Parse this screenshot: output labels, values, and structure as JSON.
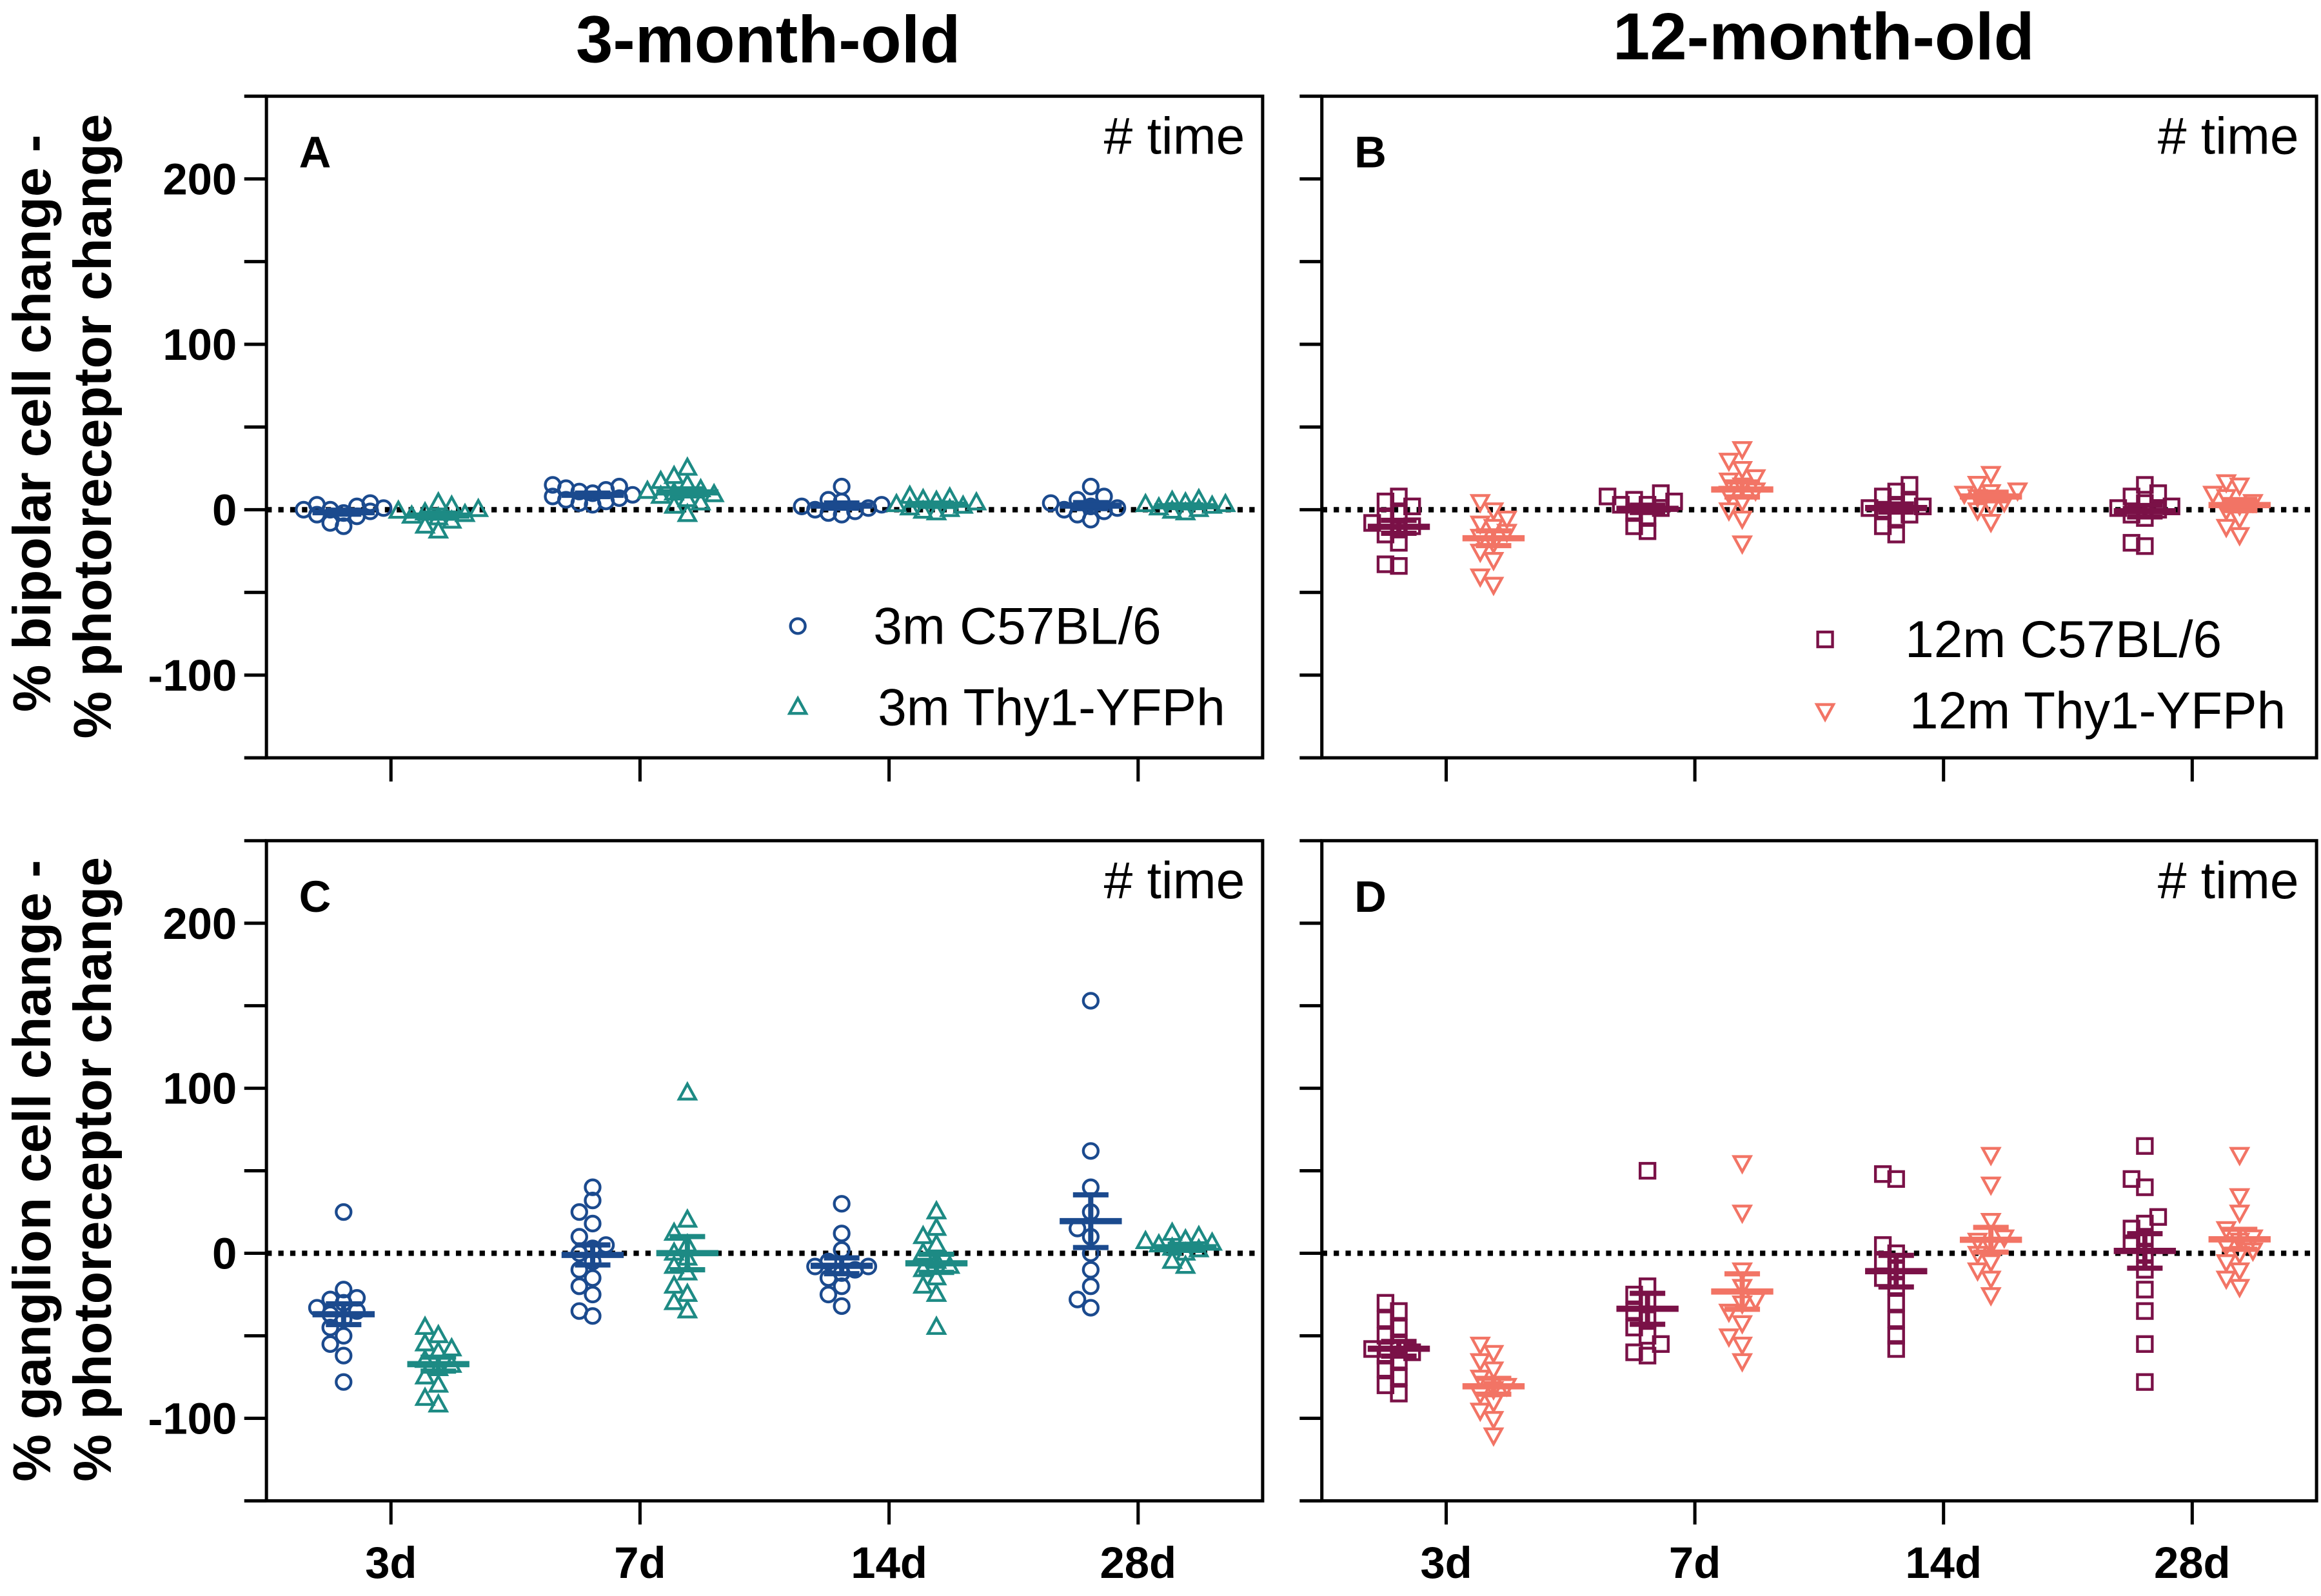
{
  "chart_data": {
    "type": "scatter",
    "column_titles": [
      "3-month-old",
      "12-month-old"
    ],
    "row_ylabels": [
      [
        "% bipolar cell change -",
        "% photoreceptor change"
      ],
      [
        "% ganglion cell change -",
        "% photoreceptor change"
      ]
    ],
    "categories": [
      "3d",
      "7d",
      "14d",
      "28d"
    ],
    "ylim": [
      -150,
      250
    ],
    "yticks": [
      200,
      100,
      0,
      -100
    ],
    "reference_line_y": 0,
    "groups": [
      {
        "name": "3m C57BL/6",
        "marker": "circle",
        "color": "#1b4a8e"
      },
      {
        "name": "3m Thy1-YFPh",
        "marker": "triangle-up",
        "color": "#1d8a84"
      },
      {
        "name": "12m C57BL/6",
        "marker": "square",
        "color": "#7a1147"
      },
      {
        "name": "12m Thy1-YFPh",
        "marker": "triangle-down",
        "color": "#f27465"
      }
    ],
    "panels": [
      {
        "label": "A",
        "annotation": "# time",
        "legend": true,
        "series": [
          {
            "group": 0,
            "values": [
              [
                3,
                1,
                -2,
                4,
                0,
                -4,
                -1,
                -8,
                2,
                -3,
                -10,
                0
              ],
              [
                12,
                10,
                8,
                14,
                6,
                9,
                4,
                11,
                7,
                3,
                15,
                13,
                5
              ],
              [
                14,
                5,
                2,
                0,
                -3,
                3,
                1,
                -2,
                6,
                -1
              ],
              [
                14,
                8,
                4,
                0,
                -3,
                2,
                -6,
                6,
                -1,
                1
              ]
            ]
          },
          {
            "group": 1,
            "values": [
              [
                4,
                0,
                -2,
                -5,
                -7,
                -3,
                -10,
                -13,
                -1,
                -4,
                2
              ],
              [
                25,
                20,
                15,
                12,
                10,
                8,
                6,
                4,
                2,
                -3,
                11,
                9,
                17
              ],
              [
                8,
                6,
                5,
                3,
                2,
                0,
                -2,
                4,
                1,
                7,
                -1
              ],
              [
                6,
                3,
                0,
                -2,
                2,
                4,
                1,
                5,
                -1,
                3
              ]
            ]
          }
        ]
      },
      {
        "label": "B",
        "annotation": "# time",
        "legend": true,
        "series": [
          {
            "group": 2,
            "values": [
              [
                8,
                5,
                2,
                -2,
                -5,
                -8,
                -10,
                -12,
                -15,
                -20,
                -33,
                -34
              ],
              [
                10,
                8,
                5,
                3,
                1,
                -2,
                -5,
                -10,
                -13,
                6,
                3
              ],
              [
                15,
                11,
                8,
                5,
                3,
                0,
                -3,
                -5,
                -10,
                -15,
                2,
                1
              ],
              [
                15,
                10,
                8,
                4,
                2,
                0,
                -3,
                -5,
                -20,
                -22,
                1
              ]
            ]
          },
          {
            "group": 3,
            "values": [
              [
                5,
                0,
                -5,
                -10,
                -13,
                -16,
                -20,
                -25,
                -30,
                -40,
                -45,
                -8
              ],
              [
                37,
                30,
                25,
                20,
                15,
                12,
                10,
                5,
                0,
                -5,
                -20,
                18
              ],
              [
                22,
                16,
                12,
                10,
                8,
                5,
                3,
                0,
                -7,
                11
              ],
              [
                17,
                15,
                10,
                5,
                3,
                0,
                -5,
                -10,
                -15,
                8
              ]
            ]
          }
        ]
      },
      {
        "label": "C",
        "annotation": "# time",
        "legend": false,
        "series": [
          {
            "group": 0,
            "values": [
              [
                25,
                -22,
                -27,
                -30,
                -33,
                -37,
                -40,
                -45,
                -50,
                -55,
                -62,
                -78,
                -35,
                -28
              ],
              [
                40,
                32,
                25,
                18,
                10,
                5,
                0,
                -5,
                -10,
                -15,
                -20,
                -25,
                -35,
                -38,
                3
              ],
              [
                30,
                12,
                2,
                -5,
                -8,
                -10,
                -12,
                -15,
                -20,
                -25,
                -32,
                -8
              ],
              [
                153,
                62,
                40,
                25,
                10,
                0,
                -10,
                -20,
                -28,
                -33,
                15
              ]
            ]
          },
          {
            "group": 1,
            "values": [
              [
                -45,
                -50,
                -55,
                -60,
                -65,
                -68,
                -70,
                -75,
                -80,
                -88,
                -92,
                -58
              ],
              [
                97,
                20,
                12,
                5,
                0,
                -3,
                -8,
                -12,
                -20,
                -25,
                -30,
                -35
              ],
              [
                25,
                15,
                10,
                5,
                0,
                -5,
                -10,
                -15,
                -20,
                -25,
                -45,
                -8
              ],
              [
                12,
                10,
                8,
                6,
                5,
                3,
                2,
                0,
                -5,
                -8,
                7
              ]
            ]
          }
        ]
      },
      {
        "label": "D",
        "annotation": "# time",
        "legend": false,
        "series": [
          {
            "group": 2,
            "values": [
              [
                -30,
                -35,
                -40,
                -45,
                -50,
                -55,
                -58,
                -60,
                -65,
                -70,
                -75,
                -80,
                -85,
                -62
              ],
              [
                50,
                -20,
                -28,
                -35,
                -40,
                -45,
                -50,
                -55,
                -60,
                -62,
                -25
              ],
              [
                48,
                45,
                5,
                0,
                -5,
                -10,
                -15,
                -20,
                -30,
                -40,
                -50,
                -58
              ],
              [
                65,
                45,
                40,
                22,
                18,
                15,
                10,
                5,
                0,
                -10,
                -22,
                -35,
                -55,
                -78
              ]
            ]
          },
          {
            "group": 3,
            "values": [
              [
                -55,
                -60,
                -65,
                -70,
                -75,
                -80,
                -85,
                -90,
                -95,
                -100,
                -110,
                -82
              ],
              [
                55,
                25,
                -10,
                -20,
                -28,
                -35,
                -42,
                -50,
                -55,
                -65,
                -30
              ],
              [
                60,
                42,
                20,
                10,
                5,
                0,
                -5,
                -10,
                -15,
                -25,
                8
              ],
              [
                60,
                35,
                25,
                15,
                10,
                5,
                2,
                0,
                -5,
                -10,
                -15,
                -20,
                8
              ]
            ]
          }
        ]
      }
    ]
  }
}
